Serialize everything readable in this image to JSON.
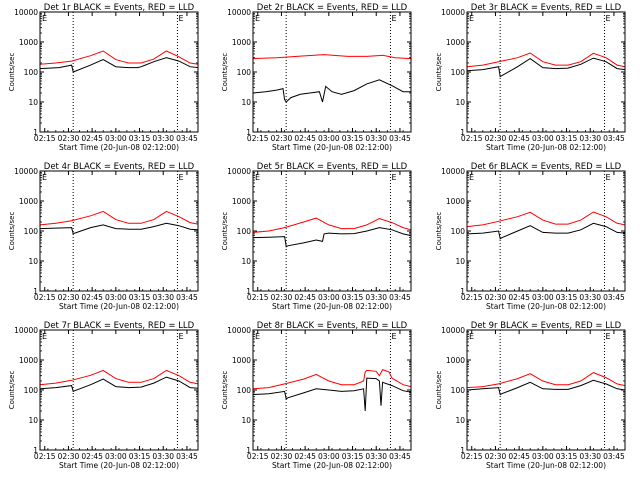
{
  "colors": {
    "events": "#000000",
    "lld": "#ff0000",
    "background": "#ffffff"
  },
  "x_tick_labels": [
    "02:15",
    "02:30",
    "02:45",
    "03:00",
    "03:15",
    "03:30",
    "03:45"
  ],
  "y_tick_labels": [
    "1",
    "10",
    "100",
    "1000",
    "10000"
  ],
  "xlabel": "Start Time (20-Jun-08 02:12:00)",
  "ylabel": "Counts/sec",
  "chart_data": [
    {
      "title": "Det 1r BLACK = Events, RED = LLD",
      "type": "line",
      "log_y": true,
      "ylim": [
        1,
        10000
      ],
      "xlim_minutes": [
        0,
        100
      ],
      "markers_minutes": [
        21,
        87
      ],
      "corner_label": "E",
      "series": [
        {
          "name": "Events",
          "color": "#000000",
          "x": [
            0,
            12,
            20,
            21,
            22,
            32,
            40,
            48,
            56,
            62,
            64,
            66,
            72,
            80,
            88,
            95,
            100
          ],
          "y": [
            130,
            140,
            170,
            100,
            105,
            170,
            260,
            150,
            140,
            140,
            150,
            165,
            220,
            300,
            230,
            150,
            140
          ]
        },
        {
          "name": "LLD",
          "color": "#ff0000",
          "x": [
            0,
            10,
            20,
            32,
            40,
            48,
            56,
            64,
            72,
            80,
            88,
            95,
            100
          ],
          "y": [
            180,
            200,
            230,
            350,
            500,
            260,
            200,
            200,
            270,
            500,
            320,
            200,
            180
          ]
        }
      ]
    },
    {
      "title": "Det 2r BLACK = Events, RED = LLD",
      "type": "line",
      "log_y": true,
      "ylim": [
        1,
        10000
      ],
      "xlim_minutes": [
        0,
        100
      ],
      "markers_minutes": [
        21,
        87
      ],
      "corner_label": "E",
      "series": [
        {
          "name": "Events",
          "color": "#000000",
          "x": [
            0,
            8,
            15,
            19,
            20,
            21,
            24,
            30,
            36,
            42,
            44,
            46,
            50,
            56,
            64,
            72,
            80,
            88,
            95,
            100
          ],
          "y": [
            20,
            22,
            25,
            28,
            12,
            10,
            14,
            18,
            20,
            22,
            10,
            33,
            22,
            18,
            24,
            40,
            55,
            35,
            22,
            22
          ]
        },
        {
          "name": "LLD",
          "color": "#ff0000",
          "x": [
            0,
            15,
            30,
            45,
            60,
            72,
            82,
            90,
            100
          ],
          "y": [
            280,
            300,
            340,
            380,
            330,
            330,
            360,
            300,
            280
          ]
        }
      ]
    },
    {
      "title": "Det 3r BLACK = Events, RED = LLD",
      "type": "line",
      "log_y": true,
      "ylim": [
        1,
        10000
      ],
      "xlim_minutes": [
        0,
        100
      ],
      "markers_minutes": [
        21,
        87
      ],
      "corner_label": "E",
      "series": [
        {
          "name": "Events",
          "color": "#000000",
          "x": [
            0,
            10,
            20,
            21,
            22,
            32,
            40,
            48,
            56,
            64,
            72,
            80,
            88,
            95,
            100
          ],
          "y": [
            110,
            120,
            150,
            70,
            75,
            150,
            280,
            140,
            130,
            135,
            180,
            290,
            220,
            130,
            120
          ]
        },
        {
          "name": "LLD",
          "color": "#ff0000",
          "x": [
            0,
            10,
            20,
            32,
            40,
            48,
            56,
            64,
            72,
            80,
            88,
            95,
            100
          ],
          "y": [
            150,
            170,
            220,
            300,
            430,
            220,
            170,
            170,
            220,
            420,
            300,
            170,
            150
          ]
        }
      ]
    },
    {
      "title": "Det 4r BLACK = Events, RED = LLD",
      "type": "line",
      "log_y": true,
      "ylim": [
        1,
        10000
      ],
      "xlim_minutes": [
        0,
        100
      ],
      "markers_minutes": [
        21,
        87
      ],
      "corner_label": "E",
      "series": [
        {
          "name": "Events",
          "color": "#000000",
          "x": [
            0,
            10,
            20,
            21,
            22,
            32,
            40,
            48,
            56,
            64,
            72,
            80,
            88,
            95,
            100
          ],
          "y": [
            120,
            125,
            130,
            80,
            85,
            130,
            160,
            120,
            115,
            115,
            140,
            180,
            150,
            115,
            110
          ]
        },
        {
          "name": "LLD",
          "color": "#ff0000",
          "x": [
            0,
            10,
            20,
            32,
            40,
            48,
            56,
            64,
            72,
            80,
            88,
            95,
            100
          ],
          "y": [
            160,
            180,
            220,
            320,
            450,
            240,
            180,
            180,
            240,
            450,
            300,
            190,
            170
          ]
        }
      ]
    },
    {
      "title": "Det 5r BLACK = Events, RED = LLD",
      "type": "line",
      "log_y": true,
      "ylim": [
        1,
        10000
      ],
      "xlim_minutes": [
        0,
        100
      ],
      "markers_minutes": [
        21,
        87
      ],
      "corner_label": "E",
      "series": [
        {
          "name": "Events",
          "color": "#000000",
          "x": [
            0,
            10,
            20,
            21,
            22,
            32,
            40,
            44,
            45,
            48,
            56,
            64,
            72,
            80,
            88,
            95,
            100
          ],
          "y": [
            60,
            62,
            65,
            30,
            32,
            40,
            50,
            45,
            80,
            85,
            80,
            82,
            100,
            130,
            110,
            80,
            70
          ]
        },
        {
          "name": "LLD",
          "color": "#ff0000",
          "x": [
            0,
            10,
            20,
            32,
            40,
            48,
            56,
            64,
            72,
            80,
            88,
            95,
            100
          ],
          "y": [
            90,
            100,
            130,
            200,
            270,
            160,
            120,
            120,
            160,
            260,
            190,
            130,
            110
          ]
        }
      ]
    },
    {
      "title": "Det 6r BLACK = Events, RED = LLD",
      "type": "line",
      "log_y": true,
      "ylim": [
        1,
        10000
      ],
      "xlim_minutes": [
        0,
        100
      ],
      "markers_minutes": [
        21,
        87
      ],
      "corner_label": "E",
      "series": [
        {
          "name": "Events",
          "color": "#000000",
          "x": [
            0,
            10,
            20,
            21,
            22,
            32,
            40,
            48,
            56,
            64,
            72,
            80,
            88,
            95,
            100
          ],
          "y": [
            80,
            85,
            100,
            55,
            60,
            100,
            150,
            90,
            85,
            85,
            110,
            180,
            140,
            90,
            85
          ]
        },
        {
          "name": "LLD",
          "color": "#ff0000",
          "x": [
            0,
            10,
            20,
            32,
            40,
            48,
            56,
            64,
            72,
            80,
            88,
            95,
            100
          ],
          "y": [
            140,
            160,
            210,
            300,
            420,
            230,
            170,
            170,
            230,
            430,
            300,
            180,
            160
          ]
        }
      ]
    },
    {
      "title": "Det 7r BLACK = Events, RED = LLD",
      "type": "line",
      "log_y": true,
      "ylim": [
        1,
        10000
      ],
      "xlim_minutes": [
        0,
        100
      ],
      "markers_minutes": [
        21,
        87
      ],
      "corner_label": "E",
      "series": [
        {
          "name": "Events",
          "color": "#000000",
          "x": [
            0,
            10,
            20,
            21,
            22,
            32,
            40,
            48,
            56,
            64,
            72,
            80,
            88,
            95,
            100
          ],
          "y": [
            110,
            120,
            140,
            90,
            95,
            150,
            230,
            130,
            120,
            125,
            170,
            270,
            200,
            120,
            115
          ]
        },
        {
          "name": "LLD",
          "color": "#ff0000",
          "x": [
            0,
            10,
            20,
            32,
            40,
            48,
            56,
            64,
            72,
            80,
            88,
            95,
            100
          ],
          "y": [
            150,
            170,
            210,
            310,
            450,
            240,
            180,
            180,
            240,
            450,
            300,
            180,
            160
          ]
        }
      ]
    },
    {
      "title": "Det 8r BLACK = Events, RED = LLD",
      "type": "line",
      "log_y": true,
      "ylim": [
        1,
        10000
      ],
      "xlim_minutes": [
        0,
        100
      ],
      "markers_minutes": [
        21,
        87
      ],
      "corner_label": "E",
      "series": [
        {
          "name": "Events",
          "color": "#000000",
          "x": [
            0,
            10,
            20,
            21,
            22,
            32,
            40,
            48,
            56,
            64,
            70,
            71,
            72,
            78,
            80,
            81,
            82,
            88,
            95,
            100
          ],
          "y": [
            70,
            75,
            90,
            50,
            55,
            80,
            110,
            100,
            90,
            95,
            110,
            20,
            250,
            240,
            200,
            30,
            180,
            140,
            95,
            85
          ]
        },
        {
          "name": "LLD",
          "color": "#ff0000",
          "x": [
            0,
            10,
            20,
            32,
            40,
            48,
            56,
            64,
            70,
            71,
            72,
            78,
            80,
            82,
            86,
            88,
            95,
            100
          ],
          "y": [
            110,
            120,
            160,
            230,
            330,
            200,
            150,
            150,
            200,
            400,
            450,
            420,
            300,
            480,
            400,
            250,
            150,
            130
          ]
        }
      ]
    },
    {
      "title": "Det 9r BLACK = Events, RED = LLD",
      "type": "line",
      "log_y": true,
      "ylim": [
        1,
        10000
      ],
      "xlim_minutes": [
        0,
        100
      ],
      "markers_minutes": [
        21,
        87
      ],
      "corner_label": "E",
      "series": [
        {
          "name": "Events",
          "color": "#000000",
          "x": [
            0,
            10,
            20,
            21,
            22,
            32,
            40,
            48,
            56,
            64,
            72,
            80,
            88,
            95,
            100
          ],
          "y": [
            100,
            110,
            120,
            70,
            75,
            120,
            180,
            110,
            105,
            105,
            140,
            210,
            160,
            110,
            100
          ]
        },
        {
          "name": "LLD",
          "color": "#ff0000",
          "x": [
            0,
            10,
            20,
            32,
            40,
            48,
            56,
            64,
            72,
            80,
            88,
            95,
            100
          ],
          "y": [
            120,
            130,
            160,
            240,
            350,
            200,
            150,
            150,
            200,
            380,
            260,
            160,
            140
          ]
        }
      ]
    }
  ]
}
